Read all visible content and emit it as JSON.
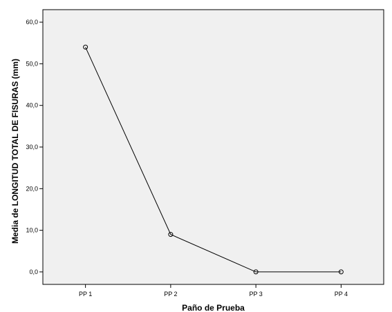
{
  "chart_data": {
    "type": "line",
    "xlabel": "Paño de Prueba",
    "ylabel": "Media de LONGITUD TOTAL DE FISURAS (mm)",
    "categories": [
      "PP 1",
      "PP 2",
      "PP 3",
      "PP 4"
    ],
    "values": [
      54.0,
      9.0,
      0.0,
      0.0
    ],
    "ylim": [
      -3.0,
      63.0
    ],
    "yticks": [
      0,
      10,
      20,
      30,
      40,
      50,
      60
    ],
    "ytick_labels": [
      "0,0",
      "10,0",
      "20,0",
      "30,0",
      "40,0",
      "50,0",
      "60,0"
    ],
    "grid": false,
    "legend": "none",
    "marker": "open-circle",
    "colors": {
      "plot_background": "#f0f0f0",
      "line": "#000000",
      "axis": "#000000"
    }
  }
}
